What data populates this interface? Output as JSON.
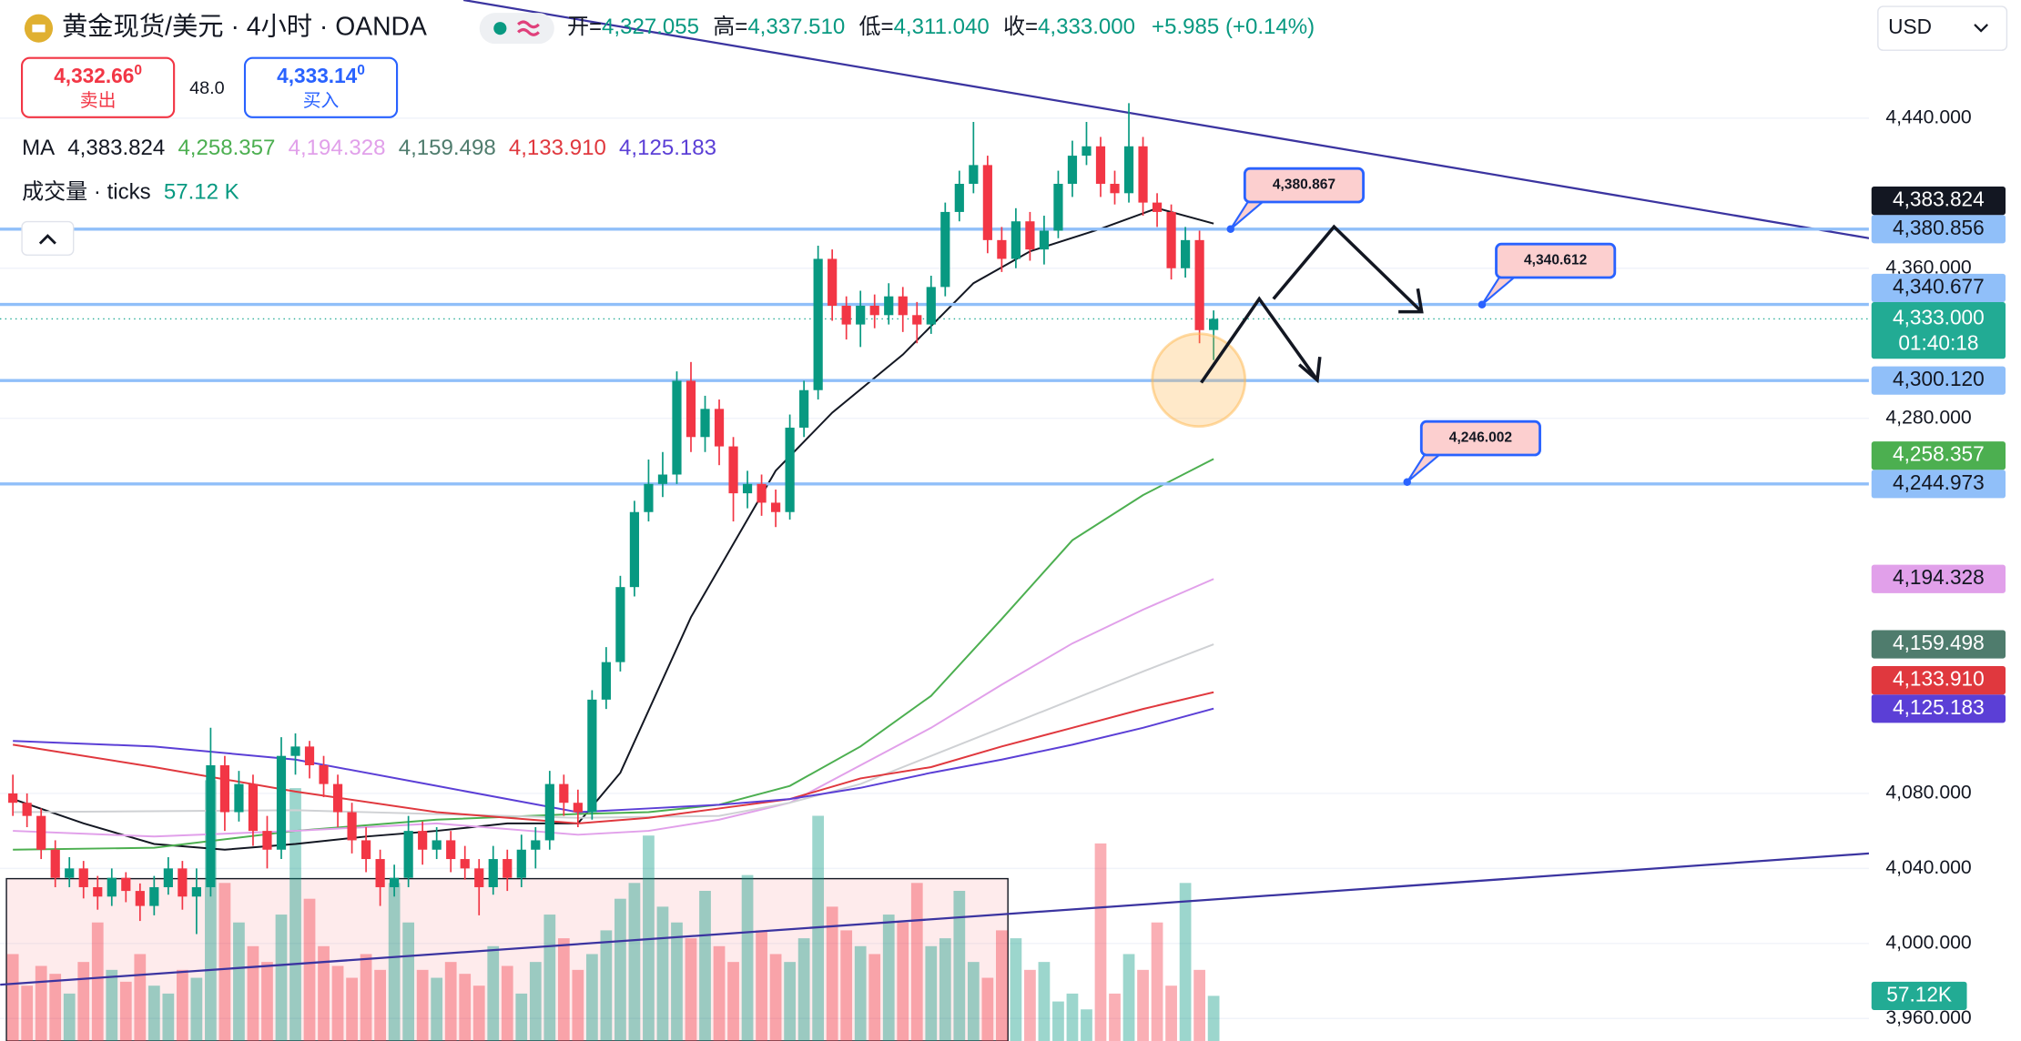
{
  "header": {
    "symbol": "黄金现货/美元 · 4小时 · OANDA",
    "ohlc": [
      {
        "label": "开=",
        "value": "4,327.055"
      },
      {
        "label": "高=",
        "value": "4,337.510"
      },
      {
        "label": "低=",
        "value": "4,311.040"
      },
      {
        "label": "收=",
        "value": "4,333.000"
      }
    ],
    "change": "+5.985 (+0.14%)"
  },
  "trade": {
    "sell_price": "4,332.66",
    "sell_sup": "0",
    "sell": "卖出",
    "spread": "48.0",
    "buy_price": "4,333.14",
    "buy_sup": "0",
    "buy": "买入"
  },
  "currency": "USD",
  "chart_data": {
    "type": "candlestick",
    "up_color": "#089981",
    "down_color": "#f23645",
    "grid": true,
    "ylim": [
      3948,
      4503
    ],
    "yticks": [
      {
        "value": 3960,
        "label": "3,960.000"
      },
      {
        "value": 4000,
        "label": "4,000.000"
      },
      {
        "value": 4040,
        "label": "4,040.000"
      },
      {
        "value": 4080,
        "label": "4,080.000"
      },
      {
        "value": 4280,
        "label": "4,280.000"
      },
      {
        "value": 4360,
        "label": "4,360.000"
      },
      {
        "value": 4440,
        "label": "4,440.000"
      }
    ],
    "ohlc": [
      [
        4080,
        4090,
        4068,
        4075
      ],
      [
        4075,
        4080,
        4062,
        4068
      ],
      [
        4068,
        4072,
        4045,
        4050
      ],
      [
        4050,
        4055,
        4030,
        4035
      ],
      [
        4035,
        4046,
        4030,
        4040
      ],
      [
        4040,
        4044,
        4024,
        4030
      ],
      [
        4030,
        4036,
        4018,
        4025
      ],
      [
        4025,
        4040,
        4020,
        4035
      ],
      [
        4035,
        4038,
        4022,
        4028
      ],
      [
        4028,
        4032,
        4012,
        4020
      ],
      [
        4020,
        4036,
        4015,
        4030
      ],
      [
        4030,
        4046,
        4026,
        4040
      ],
      [
        4040,
        4044,
        4018,
        4025
      ],
      [
        4025,
        4040,
        4005,
        4030
      ],
      [
        4030,
        4115,
        4025,
        4095
      ],
      [
        4095,
        4100,
        4060,
        4070
      ],
      [
        4070,
        4092,
        4065,
        4085
      ],
      [
        4085,
        4090,
        4052,
        4060
      ],
      [
        4060,
        4068,
        4040,
        4050
      ],
      [
        4050,
        4110,
        4045,
        4100
      ],
      [
        4100,
        4112,
        4090,
        4105
      ],
      [
        4105,
        4108,
        4088,
        4095
      ],
      [
        4095,
        4100,
        4078,
        4085
      ],
      [
        4085,
        4090,
        4062,
        4070
      ],
      [
        4070,
        4075,
        4048,
        4055
      ],
      [
        4055,
        4062,
        4038,
        4045
      ],
      [
        4045,
        4050,
        4020,
        4030
      ],
      [
        4030,
        4042,
        4025,
        4035
      ],
      [
        4035,
        4068,
        4030,
        4060
      ],
      [
        4060,
        4065,
        4042,
        4050
      ],
      [
        4050,
        4062,
        4045,
        4055
      ],
      [
        4055,
        4060,
        4038,
        4045
      ],
      [
        4045,
        4052,
        4034,
        4040
      ],
      [
        4040,
        4045,
        4015,
        4030
      ],
      [
        4030,
        4052,
        4026,
        4045
      ],
      [
        4045,
        4050,
        4028,
        4035
      ],
      [
        4035,
        4058,
        4030,
        4050
      ],
      [
        4050,
        4062,
        4040,
        4055
      ],
      [
        4055,
        4092,
        4050,
        4085
      ],
      [
        4085,
        4090,
        4068,
        4075
      ],
      [
        4075,
        4082,
        4062,
        4070
      ],
      [
        4070,
        4135,
        4066,
        4130
      ],
      [
        4130,
        4158,
        4125,
        4150
      ],
      [
        4150,
        4196,
        4145,
        4190
      ],
      [
        4190,
        4236,
        4185,
        4230
      ],
      [
        4230,
        4258,
        4225,
        4245
      ],
      [
        4245,
        4262,
        4238,
        4250
      ],
      [
        4250,
        4305,
        4245,
        4300
      ],
      [
        4300,
        4310,
        4262,
        4270
      ],
      [
        4270,
        4292,
        4262,
        4285
      ],
      [
        4285,
        4290,
        4255,
        4265
      ],
      [
        4265,
        4270,
        4225,
        4240
      ],
      [
        4240,
        4252,
        4232,
        4245
      ],
      [
        4245,
        4250,
        4228,
        4235
      ],
      [
        4235,
        4242,
        4222,
        4230
      ],
      [
        4230,
        4282,
        4226,
        4275
      ],
      [
        4275,
        4300,
        4270,
        4295
      ],
      [
        4295,
        4372,
        4290,
        4365
      ],
      [
        4365,
        4370,
        4332,
        4340
      ],
      [
        4340,
        4345,
        4322,
        4330
      ],
      [
        4330,
        4348,
        4318,
        4340
      ],
      [
        4340,
        4346,
        4328,
        4335
      ],
      [
        4335,
        4352,
        4330,
        4345
      ],
      [
        4345,
        4350,
        4326,
        4335
      ],
      [
        4335,
        4342,
        4320,
        4330
      ],
      [
        4330,
        4356,
        4325,
        4350
      ],
      [
        4350,
        4395,
        4345,
        4390
      ],
      [
        4390,
        4412,
        4385,
        4405
      ],
      [
        4405,
        4438,
        4400,
        4415
      ],
      [
        4415,
        4420,
        4368,
        4375
      ],
      [
        4375,
        4382,
        4358,
        4365
      ],
      [
        4365,
        4392,
        4360,
        4385
      ],
      [
        4385,
        4390,
        4364,
        4370
      ],
      [
        4370,
        4388,
        4362,
        4380
      ],
      [
        4380,
        4412,
        4376,
        4405
      ],
      [
        4405,
        4428,
        4398,
        4420
      ],
      [
        4420,
        4438,
        4415,
        4425
      ],
      [
        4425,
        4430,
        4398,
        4405
      ],
      [
        4405,
        4412,
        4394,
        4400
      ],
      [
        4400,
        4448,
        4395,
        4425
      ],
      [
        4425,
        4430,
        4388,
        4395
      ],
      [
        4395,
        4400,
        4382,
        4390
      ],
      [
        4390,
        4394,
        4354,
        4360
      ],
      [
        4360,
        4382,
        4355,
        4375
      ],
      [
        4375,
        4380,
        4320,
        4327
      ],
      [
        4327.055,
        4337.51,
        4311.04,
        4333
      ]
    ],
    "volume": {
      "name": "成交量 · ticks",
      "legend_label": "57.12 K",
      "axis_label": "57.12K",
      "ylim": [
        0,
        600000
      ],
      "values": [
        110000,
        70000,
        95000,
        85000,
        60000,
        100000,
        150000,
        90000,
        75000,
        110000,
        70000,
        60000,
        90000,
        80000,
        330000,
        200000,
        150000,
        120000,
        100000,
        160000,
        320000,
        180000,
        120000,
        95000,
        80000,
        110000,
        90000,
        200000,
        150000,
        90000,
        80000,
        100000,
        85000,
        70000,
        120000,
        95000,
        60000,
        100000,
        160000,
        130000,
        90000,
        110000,
        140000,
        180000,
        200000,
        260000,
        170000,
        150000,
        130000,
        190000,
        120000,
        100000,
        210000,
        140000,
        110000,
        100000,
        130000,
        285000,
        170000,
        140000,
        120000,
        110000,
        160000,
        150000,
        200000,
        120000,
        130000,
        190000,
        100000,
        80000,
        140000,
        130000,
        90000,
        100000,
        50000,
        60000,
        40000,
        250000,
        60000,
        110000,
        90000,
        150000,
        70000,
        200000,
        90000,
        57120
      ]
    },
    "ma": {
      "name": "MA",
      "series": [
        {
          "color": "#131722",
          "last_label": "4,383.824",
          "x": [
            0,
            5,
            10,
            15,
            20,
            25,
            30,
            35,
            40,
            43,
            48,
            54,
            58,
            63,
            68,
            72,
            77,
            81,
            85
          ],
          "values": [
            4077,
            4064,
            4053,
            4050,
            4053,
            4057,
            4060,
            4064,
            4064,
            4091,
            4174,
            4252,
            4283,
            4314,
            4352,
            4369,
            4381,
            4392,
            4383.824
          ]
        },
        {
          "color": "#4caf50",
          "last_label": "4,258.357",
          "x": [
            0,
            10,
            20,
            30,
            40,
            45,
            50,
            55,
            60,
            65,
            70,
            75,
            80,
            85
          ],
          "values": [
            4050,
            4051,
            4060,
            4066,
            4069,
            4070,
            4074,
            4084,
            4105,
            4132,
            4173,
            4215,
            4239,
            4258.357
          ]
        },
        {
          "color": "#e1a0ea",
          "last_label": "4,194.328",
          "x": [
            0,
            10,
            20,
            30,
            40,
            45,
            50,
            55,
            60,
            65,
            70,
            75,
            80,
            85
          ],
          "values": [
            4060,
            4057,
            4060,
            4064,
            4058,
            4060,
            4066,
            4075,
            4095,
            4115,
            4138,
            4160,
            4178,
            4194.328
          ]
        },
        {
          "color": "#4f7c6d",
          "line_color": "#cfd1d4",
          "last_label": "4,159.498",
          "x": [
            0,
            20,
            40,
            50,
            55,
            60,
            65,
            70,
            75,
            80,
            85
          ],
          "values": [
            4070,
            4071,
            4067,
            4068,
            4075,
            4085,
            4100,
            4115,
            4130,
            4145,
            4159.498
          ]
        },
        {
          "color": "#e0383e",
          "last_label": "4,133.910",
          "x": [
            0,
            10,
            20,
            30,
            40,
            45,
            50,
            55,
            60,
            65,
            70,
            75,
            80,
            85
          ],
          "values": [
            4106,
            4094,
            4081,
            4070,
            4064,
            4067,
            4072,
            4077,
            4088,
            4094,
            4105,
            4115,
            4125,
            4133.91
          ]
        },
        {
          "color": "#5b3fd6",
          "last_label": "4,125.183",
          "x": [
            0,
            10,
            20,
            30,
            40,
            45,
            50,
            55,
            60,
            65,
            70,
            75,
            80,
            85
          ],
          "values": [
            4108,
            4105,
            4098,
            4084,
            4070,
            4072,
            4074,
            4077,
            4083,
            4091,
            4098,
            4106,
            4115,
            4125.183
          ]
        }
      ]
    },
    "levels": {
      "color": "#90bff9",
      "items": [
        {
          "value": 4380.856,
          "label": "4,380.856"
        },
        {
          "value": 4340.677,
          "label": "4,340.677"
        },
        {
          "value": 4300.12,
          "label": "4,300.120"
        },
        {
          "value": 4244.973,
          "label": "4,244.973"
        }
      ]
    },
    "last_price": {
      "value": 4333,
      "label": "4,333.000",
      "countdown": "01:40:18",
      "color": "#22ab94"
    },
    "trendlines": {
      "color": "#3b34a0",
      "items": [
        {
          "x": [
            31.9,
            131.4
          ],
          "values": [
            4503,
            4376
          ]
        },
        {
          "x": [
            -0.9,
            131.4
          ],
          "values": [
            3978,
            4048
          ]
        }
      ]
    },
    "callouts": [
      {
        "x": 86.2,
        "value": 4380.867,
        "label": "4,380.867"
      },
      {
        "x": 104,
        "value": 4340.612,
        "label": "4,340.612"
      },
      {
        "x": 98.7,
        "value": 4246.002,
        "label": "4,246.002"
      }
    ]
  }
}
